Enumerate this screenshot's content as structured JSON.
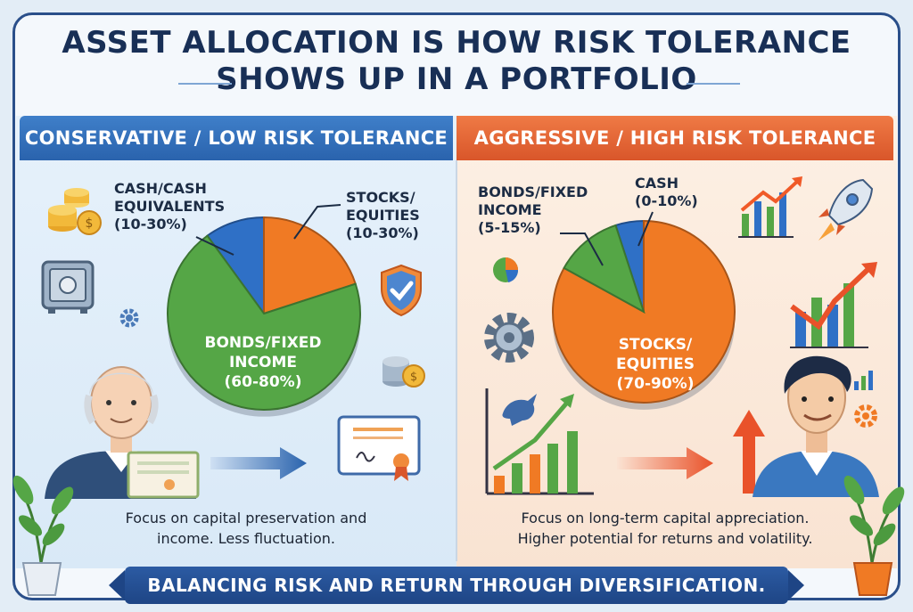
{
  "title_line1": "ASSET ALLOCATION IS HOW RISK TOLERANCE",
  "title_line2": "SHOWS UP IN A PORTFOLIO",
  "footer_text": "BALANCING RISK AND RETURN THROUGH DIVERSIFICATION.",
  "colors": {
    "cash": "#2f70c6",
    "stocks": "#f07a24",
    "bonds": "#55a646",
    "left_accent": "#2a63ad",
    "right_accent": "#d9562a"
  },
  "icons": [
    "coins-icon",
    "safe-icon",
    "gear-icon",
    "shield-check-icon",
    "certificate-icon",
    "arrow-right-icon",
    "rocket-icon",
    "bar-chart-up-icon",
    "pie-chart-icon",
    "bull-icon",
    "plant-icon"
  ],
  "chart_data": [
    {
      "type": "pie",
      "title": "CONSERVATIVE / LOW RISK TOLERANCE",
      "slices": [
        {
          "label_line1": "CASH/CASH",
          "label_line2": "EQUIVALENTS",
          "range": "(10-30%)",
          "value": 10,
          "color": "#2f70c6"
        },
        {
          "label_line1": "STOCKS/",
          "label_line2": "EQUITIES",
          "range": "(10-30%)",
          "value": 20,
          "color": "#f07a24"
        },
        {
          "label_line1": "BONDS/FIXED",
          "label_line2": "INCOME",
          "range": "(60-80%)",
          "value": 70,
          "color": "#55a646"
        }
      ],
      "caption_line1": "Focus on capital preservation and",
      "caption_line2": "income. Less fluctuation."
    },
    {
      "type": "pie",
      "title": "AGGRESSIVE / HIGH RISK TOLERANCE",
      "slices": [
        {
          "label_line1": "CASH",
          "label_line2": "",
          "range": "(0-10%)",
          "value": 5,
          "color": "#2f70c6"
        },
        {
          "label_line1": "STOCKS/",
          "label_line2": "EQUITIES",
          "range": "(70-90%)",
          "value": 83,
          "color": "#f07a24"
        },
        {
          "label_line1": "BONDS/FIXED",
          "label_line2": "INCOME",
          "range": "(5-15%)",
          "value": 12,
          "color": "#55a646"
        }
      ],
      "caption_line1": "Focus on long-term capital appreciation.",
      "caption_line2": "Higher potential for returns and volatility."
    }
  ]
}
